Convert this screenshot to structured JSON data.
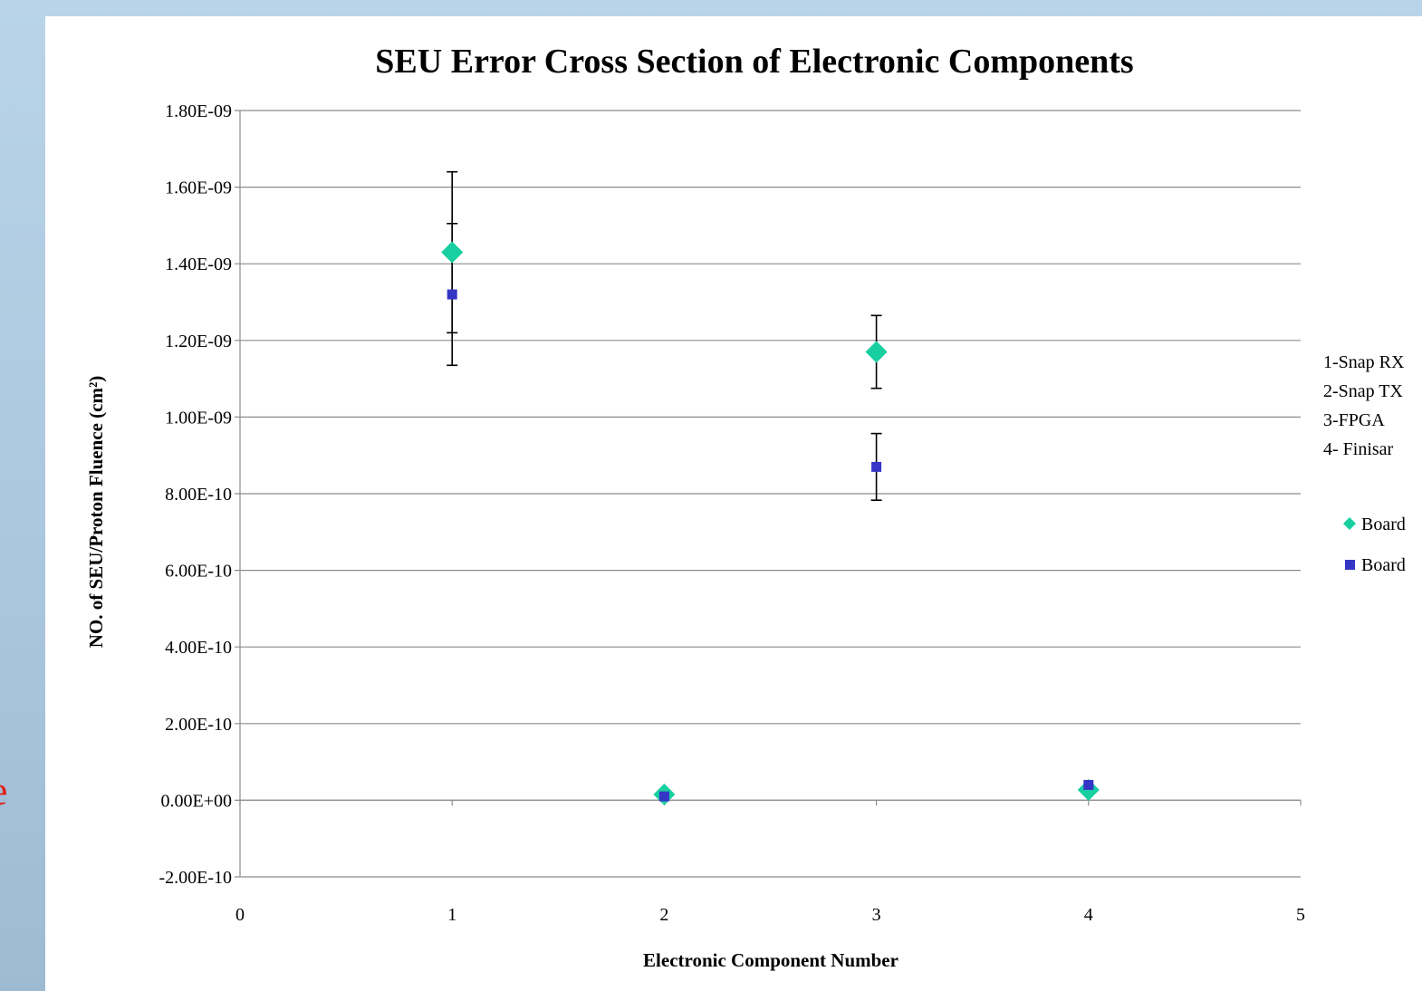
{
  "side_fragment": "e",
  "colors": {
    "board1": "#17cfa0",
    "board2": "#3535c6",
    "grid": "#8c8c8c",
    "error_bar": "#000000"
  },
  "component_key": [
    "1-Snap RX",
    "2-Snap TX",
    "3-FPGA",
    "4- Finisar"
  ],
  "chart_data": {
    "type": "scatter",
    "title": "SEU Error Cross Section of Electronic Components",
    "xlabel": "Electronic Component Number",
    "ylabel": "NO. of SEU/Proton Fluence (cm²)",
    "xlim": [
      0,
      5
    ],
    "ylim": [
      -2e-10,
      1.8e-09
    ],
    "x_ticks": [
      "0",
      "1",
      "2",
      "3",
      "4",
      "5"
    ],
    "y_ticks": [
      "1.80E-09",
      "1.60E-09",
      "1.40E-09",
      "1.20E-09",
      "1.00E-09",
      "8.00E-10",
      "6.00E-10",
      "4.00E-10",
      "2.00E-10",
      "0.00E+00",
      "-2.00E-10"
    ],
    "grid": true,
    "legend_position": "right",
    "series": [
      {
        "name": "Board",
        "marker": "diamond",
        "points": [
          {
            "x": 1,
            "y": 1.43e-09,
            "err": 2.1e-10
          },
          {
            "x": 2,
            "y": 1.5e-11
          },
          {
            "x": 3,
            "y": 1.17e-09,
            "err": 9.5e-11
          },
          {
            "x": 4,
            "y": 2.7e-11
          }
        ]
      },
      {
        "name": "Board",
        "marker": "square",
        "points": [
          {
            "x": 1,
            "y": 1.32e-09,
            "err": 1.85e-10
          },
          {
            "x": 2,
            "y": 1e-11
          },
          {
            "x": 3,
            "y": 8.7e-10,
            "err": 8.7e-11
          },
          {
            "x": 4,
            "y": 4e-11
          }
        ]
      }
    ]
  }
}
